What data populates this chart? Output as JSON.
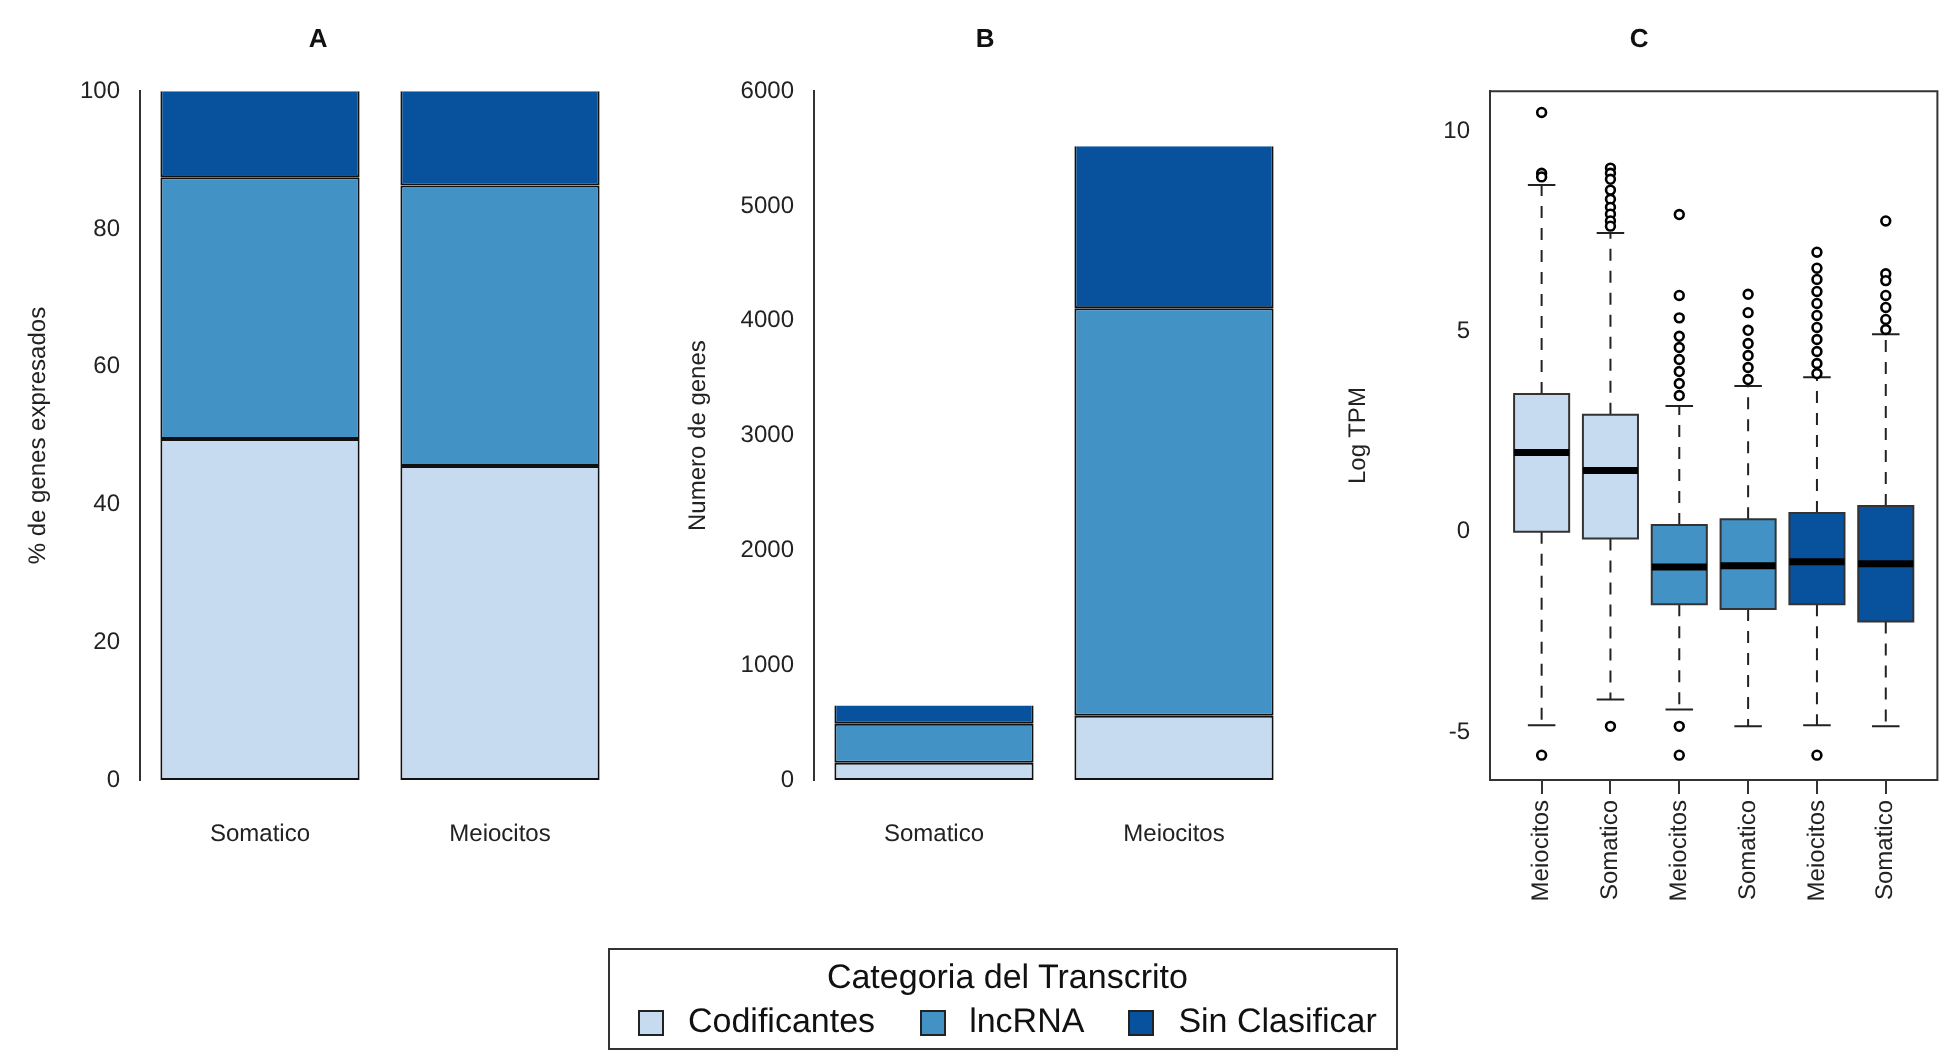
{
  "chart_data": [
    {
      "type": "bar",
      "title": "A",
      "ylabel": "% de genes expresados",
      "categories": [
        "Somatico",
        "Meiocitos"
      ],
      "stacked": true,
      "ylim": [
        0,
        100
      ],
      "yticks": [
        0,
        20,
        40,
        60,
        80,
        100
      ],
      "series": [
        {
          "color": "#c6dbef",
          "values": [
            49.5,
            45.6
          ]
        },
        {
          "color": "#4292c6",
          "values": [
            38,
            40.7
          ]
        },
        {
          "color": "#08519c",
          "values": [
            12.5,
            13.7
          ]
        }
      ]
    },
    {
      "type": "bar",
      "title": "B",
      "ylabel": "Numero de genes",
      "categories": [
        "Somatico",
        "Meiocitos"
      ],
      "stacked": true,
      "ylim": [
        0,
        6000
      ],
      "yticks": [
        0,
        1000,
        2000,
        3000,
        4000,
        5000,
        6000
      ],
      "legend": "bottom",
      "legend_title": "Categoria del Transcrito",
      "series": [
        {
          "name": "Codificantes",
          "color": "#c6dbef",
          "values": [
            150,
            560
          ]
        },
        {
          "name": "lncRNA",
          "color": "#4292c6",
          "values": [
            340,
            3550
          ]
        },
        {
          "name": "Sin Clasificar",
          "color": "#08519c",
          "values": [
            160,
            1410
          ]
        }
      ]
    },
    {
      "type": "box",
      "title": "C",
      "ylabel": "Log TPM",
      "categories": [
        "Meiocitos",
        "Somatico",
        "Meiocitos",
        "Somatico",
        "Meiocitos",
        "Somatico"
      ],
      "ylim": [
        -6.2,
        11.0
      ],
      "yticks": [
        -5,
        0,
        5,
        10
      ],
      "colors": [
        "#c6dbef",
        "#c6dbef",
        "#4292c6",
        "#4292c6",
        "#08519c",
        "#08519c"
      ],
      "boxes": [
        {
          "low": -4.83,
          "q1": 0,
          "median": 1.98,
          "q3": 3.44,
          "high": 8.66,
          "outliers": [
            10.47,
            8.95,
            8.86,
            -5.58
          ]
        },
        {
          "low": -4.19,
          "q1": -0.17,
          "median": 1.53,
          "q3": 2.92,
          "high": 7.46,
          "outliers": [
            9.08,
            8.95,
            8.8,
            8.53,
            8.3,
            8.1,
            7.93,
            7.76,
            7.63,
            -4.86
          ]
        },
        {
          "low": -4.44,
          "q1": -1.81,
          "median": -0.88,
          "q3": 0.17,
          "high": 3.14,
          "outliers": [
            7.92,
            5.9,
            5.34,
            4.88,
            4.6,
            4.3,
            4.0,
            3.7,
            3.4,
            -4.86,
            -5.58
          ]
        },
        {
          "low": -4.86,
          "q1": -1.93,
          "median": -0.85,
          "q3": 0.31,
          "high": 3.64,
          "outliers": [
            5.93,
            5.47,
            5.03,
            4.7,
            4.4,
            4.1,
            3.8
          ]
        },
        {
          "low": -4.83,
          "q1": -1.81,
          "median": -0.75,
          "q3": 0.47,
          "high": 3.86,
          "outliers": [
            6.98,
            6.58,
            6.3,
            6.0,
            5.7,
            5.4,
            5.1,
            4.8,
            4.5,
            4.2,
            3.95,
            -5.58
          ]
        },
        {
          "low": -4.86,
          "q1": -2.24,
          "median": -0.8,
          "q3": 0.64,
          "high": 4.93,
          "outliers": [
            7.76,
            6.44,
            6.27,
            5.9,
            5.6,
            5.3,
            5.05
          ]
        }
      ]
    }
  ]
}
